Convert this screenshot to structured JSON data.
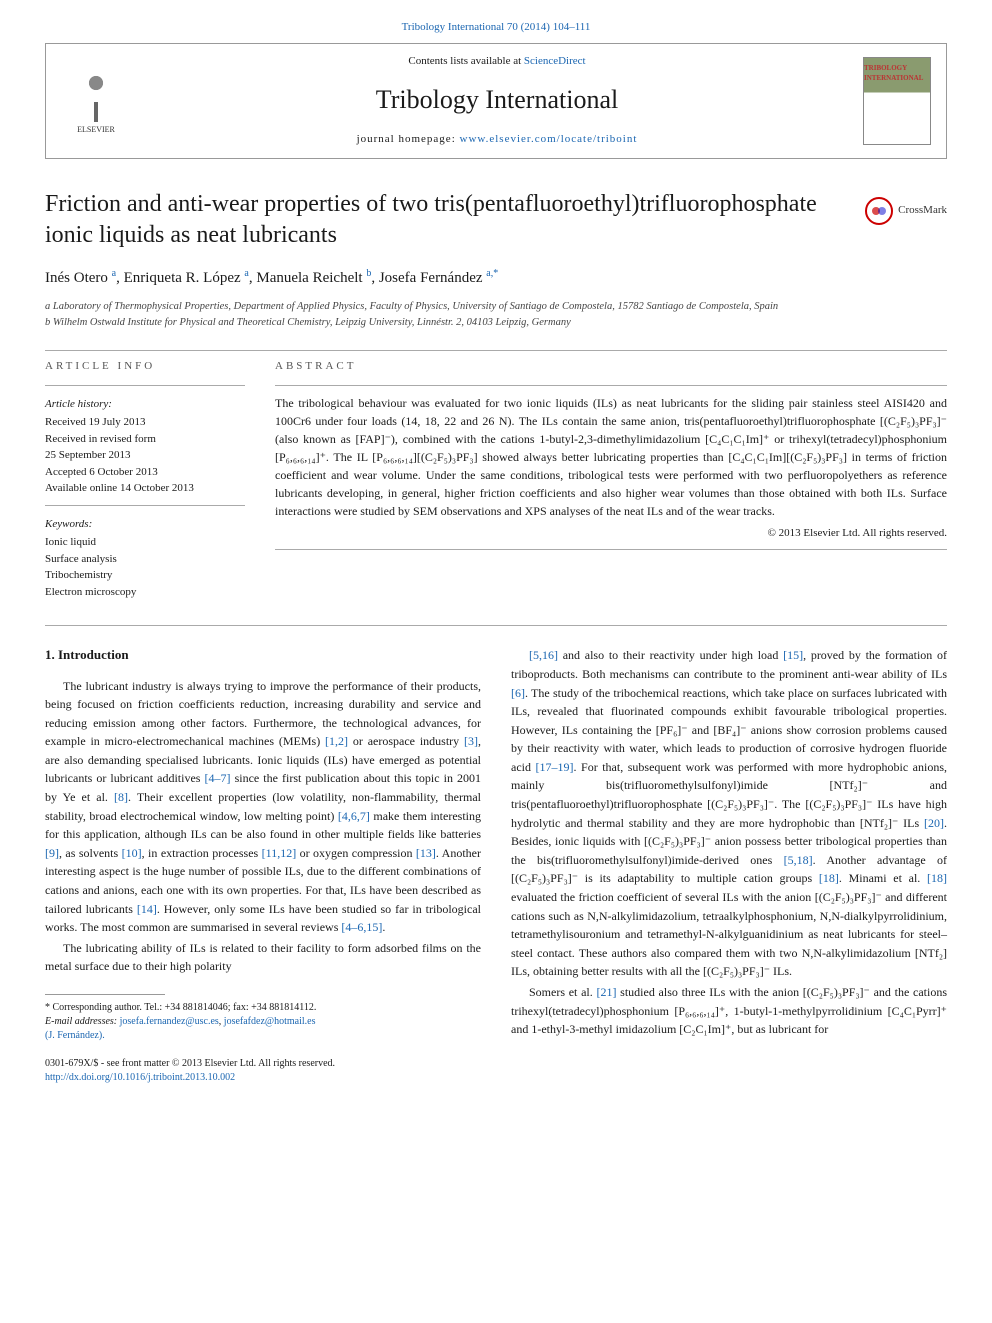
{
  "top_citation": "Tribology International 70 (2014) 104–111",
  "header": {
    "contents_prefix": "Contents lists available at ",
    "contents_link": "ScienceDirect",
    "journal_name": "Tribology International",
    "homepage_prefix": "journal homepage: ",
    "homepage_link": "www.elsevier.com/locate/triboint",
    "publisher": "ELSEVIER",
    "cover_text": "TRIBOLOGY INTERNATIONAL"
  },
  "title": "Friction and anti-wear properties of two tris(pentafluoroethyl)trifluorophosphate ionic liquids as neat lubricants",
  "crossmark": "CrossMark",
  "authors_html": "Inés Otero <span class='sup'>a</span>, Enriqueta R. López <span class='sup'>a</span>, Manuela Reichelt <span class='sup'>b</span>, Josefa Fernández <span class='sup'>a,*</span>",
  "affiliations": {
    "a": "a Laboratory of Thermophysical Properties, Department of Applied Physics, Faculty of Physics, University of Santiago de Compostela, 15782 Santiago de Compostela, Spain",
    "b": "b Wilhelm Ostwald Institute for Physical and Theoretical Chemistry, Leipzig University, Linnéstr. 2, 04103 Leipzig, Germany"
  },
  "article_info": {
    "label": "ARTICLE INFO",
    "history_heading": "Article history:",
    "history": [
      "Received 19 July 2013",
      "Received in revised form",
      "25 September 2013",
      "Accepted 6 October 2013",
      "Available online 14 October 2013"
    ],
    "keywords_heading": "Keywords:",
    "keywords": [
      "Ionic liquid",
      "Surface analysis",
      "Tribochemistry",
      "Electron microscopy"
    ]
  },
  "abstract": {
    "label": "ABSTRACT",
    "text": "The tribological behaviour was evaluated for two ionic liquids (ILs) as neat lubricants for the sliding pair stainless steel AISI420 and 100Cr6 under four loads (14, 18, 22 and 26 N). The ILs contain the same anion, tris(pentafluoroethyl)trifluorophosphate [(C₂F₅)₃PF₃]⁻ (also known as [FAP]⁻), combined with the cations 1-butyl-2,3-dimethylimidazolium [C₄C₁C₁Im]⁺ or trihexyl(tetradecyl)phosphonium [P₆,₆,₆,₁₄]⁺. The IL [P₆,₆,₆,₁₄][(C₂F₅)₃PF₃] showed always better lubricating properties than [C₄C₁C₁Im][(C₂F₅)₃PF₃] in terms of friction coefficient and wear volume. Under the same conditions, tribological tests were performed with two perfluoropolyethers as reference lubricants developing, in general, higher friction coefficients and also higher wear volumes than those obtained with both ILs. Surface interactions were studied by SEM observations and XPS analyses of the neat ILs and of the wear tracks.",
    "copyright": "© 2013 Elsevier Ltd. All rights reserved."
  },
  "body": {
    "section_number": "1.",
    "section_title": "Introduction",
    "left_col": [
      "The lubricant industry is always trying to improve the performance of their products, being focused on friction coefficients reduction, increasing durability and service and reducing emission among other factors. Furthermore, the technological advances, for example in micro-electromechanical machines (MEMs) [1,2] or aerospace industry [3], are also demanding specialised lubricants. Ionic liquids (ILs) have emerged as potential lubricants or lubricant additives [4–7] since the first publication about this topic in 2001 by Ye et al. [8]. Their excellent properties (low volatility, non-flammability, thermal stability, broad electrochemical window, low melting point) [4,6,7] make them interesting for this application, although ILs can be also found in other multiple fields like batteries [9], as solvents [10], in extraction processes [11,12] or oxygen compression [13]. Another interesting aspect is the huge number of possible ILs, due to the different combinations of cations and anions, each one with its own properties. For that, ILs have been described as tailored lubricants [14]. However, only some ILs have been studied so far in tribological works. The most common are summarised in several reviews [4–6,15].",
      "The lubricating ability of ILs is related to their facility to form adsorbed films on the metal surface due to their high polarity"
    ],
    "right_col": [
      "[5,16] and also to their reactivity under high load [15], proved by the formation of triboproducts. Both mechanisms can contribute to the prominent anti-wear ability of ILs [6]. The study of the tribochemical reactions, which take place on surfaces lubricated with ILs, revealed that fluorinated compounds exhibit favourable tribological properties. However, ILs containing the [PF₆]⁻ and [BF₄]⁻ anions show corrosion problems caused by their reactivity with water, which leads to production of corrosive hydrogen fluoride acid [17–19]. For that, subsequent work was performed with more hydrophobic anions, mainly bis(trifluoromethylsulfonyl)imide [NTf₂]⁻ and tris(pentafluoroethyl)trifluorophosphate [(C₂F₅)₃PF₃]⁻. The [(C₂F₅)₃PF₃]⁻ ILs have high hydrolytic and thermal stability and they are more hydrophobic than [NTf₂]⁻ ILs [20]. Besides, ionic liquids with [(C₂F₅)₃PF₃]⁻ anion possess better tribological properties than the bis(trifluoromethylsulfonyl)imide-derived ones [5,18]. Another advantage of [(C₂F₅)₃PF₃]⁻ is its adaptability to multiple cation groups [18]. Minami et al. [18] evaluated the friction coefficient of several ILs with the anion [(C₂F₅)₃PF₃]⁻ and different cations such as N,N-alkylimidazolium, tetraalkylphosphonium, N,N-dialkylpyrrolidinium, tetramethylisouronium and tetramethyl-N-alkylguanidinium as neat lubricants for steel–steel contact. These authors also compared them with two N,N-alkylimidazolium [NTf₂] ILs, obtaining better results with all the [(C₂F₅)₃PF₃]⁻ ILs.",
      "Somers et al. [21] studied also three ILs with the anion [(C₂F₅)₃PF₃]⁻ and the cations trihexyl(tetradecyl)phosphonium [P₆,₆,₆,₁₄]⁺, 1-butyl-1-methylpyrrolidinium [C₄C₁Pyrr]⁺ and 1-ethyl-3-methyl imidazolium [C₂C₁Im]⁺, but as lubricant for"
    ]
  },
  "footnotes": {
    "corresponding": "* Corresponding author. Tel.: +34 881814046; fax: +34 881814112.",
    "email_label": "E-mail addresses: ",
    "email1": "josefa.fernandez@usc.es",
    "email_sep": ", ",
    "email2": "josefafdez@hotmail.es",
    "email_name": "(J. Fernández)."
  },
  "footer": {
    "issn": "0301-679X/$ - see front matter © 2013 Elsevier Ltd. All rights reserved.",
    "doi": "http://dx.doi.org/10.1016/j.triboint.2013.10.002"
  },
  "colors": {
    "link": "#1b66b1",
    "rule": "#aaaaaa",
    "text": "#1a1a1a"
  }
}
